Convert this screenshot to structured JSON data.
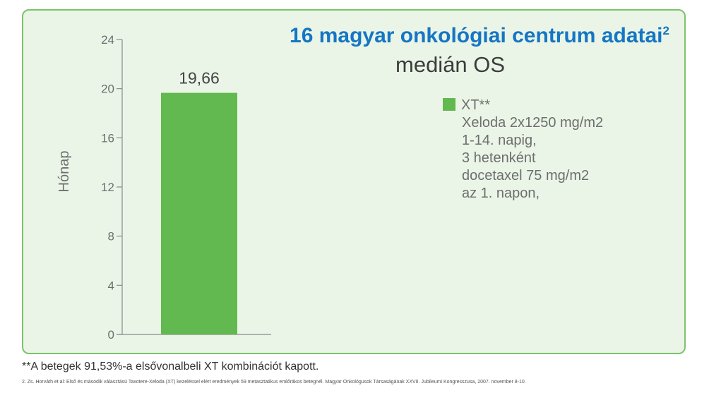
{
  "chart_data": {
    "type": "bar",
    "title": "16 magyar onkológiai centrum adatai",
    "title_superscript": "2",
    "subtitle": "medián OS",
    "ylabel": "Hónap",
    "ylim": [
      0,
      24
    ],
    "yticks": [
      0,
      4,
      8,
      12,
      16,
      20,
      24
    ],
    "ytick_labels": [
      "0",
      "4",
      "8",
      "12",
      "16",
      "20",
      "24"
    ],
    "categories": [
      "XT**"
    ],
    "values": [
      19.66
    ],
    "value_labels": [
      "19,66"
    ],
    "grid": false,
    "legend": {
      "placement": "right",
      "label": "XT**",
      "description": [
        "Xeloda 2x1250 mg/m2",
        "1-14. napig,",
        "3 hetenként",
        "docetaxel 75 mg/m2",
        "az 1. napon,"
      ]
    },
    "colors": {
      "bar": "#62b94f",
      "title": "#1576c4",
      "panel_bg": "#eaf5e7",
      "panel_border": "#7cc36b"
    }
  },
  "footnote": "**A betegek 91,53%-a elsővonalbeli XT kombinációt kapott.",
  "reference": "2. Zs. Horváth et al: Első és második választású Taxotere-Xeloda (XT) kezeléssel elért eredmények 59 metasztatikus emlőrákos betegnél. Magyar Onkológusok Társaságának XXVII. Jubileumi Kongresszusa, 2007. november 8-10."
}
